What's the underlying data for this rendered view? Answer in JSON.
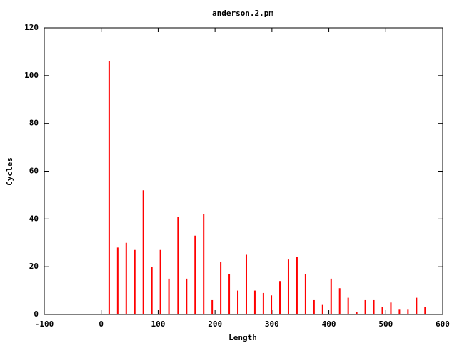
{
  "chart_data": {
    "type": "impulse",
    "title": "anderson.2.pm",
    "xlabel": "Length",
    "ylabel": "Cycles",
    "x": [
      14,
      29,
      44,
      59,
      74,
      89,
      104,
      119,
      135,
      150,
      165,
      180,
      195,
      210,
      225,
      240,
      255,
      270,
      285,
      299,
      314,
      329,
      344,
      359,
      374,
      389,
      404,
      419,
      434,
      449,
      464,
      479,
      494,
      509,
      524,
      539,
      554,
      569
    ],
    "values": [
      106,
      28,
      30,
      27,
      52,
      20,
      27,
      15,
      41,
      15,
      33,
      42,
      6,
      22,
      17,
      10,
      25,
      10,
      9,
      8,
      14,
      23,
      24,
      17,
      6,
      4,
      15,
      11,
      7,
      1,
      6,
      6,
      3,
      5,
      2,
      2,
      7,
      3
    ],
    "color": "#ff0000",
    "xlim": [
      -100,
      600
    ],
    "xticks": [
      -100,
      0,
      100,
      200,
      300,
      400,
      500,
      600
    ],
    "ylim": [
      0,
      120
    ],
    "yticks": [
      0,
      20,
      40,
      60,
      80,
      100,
      120
    ]
  }
}
